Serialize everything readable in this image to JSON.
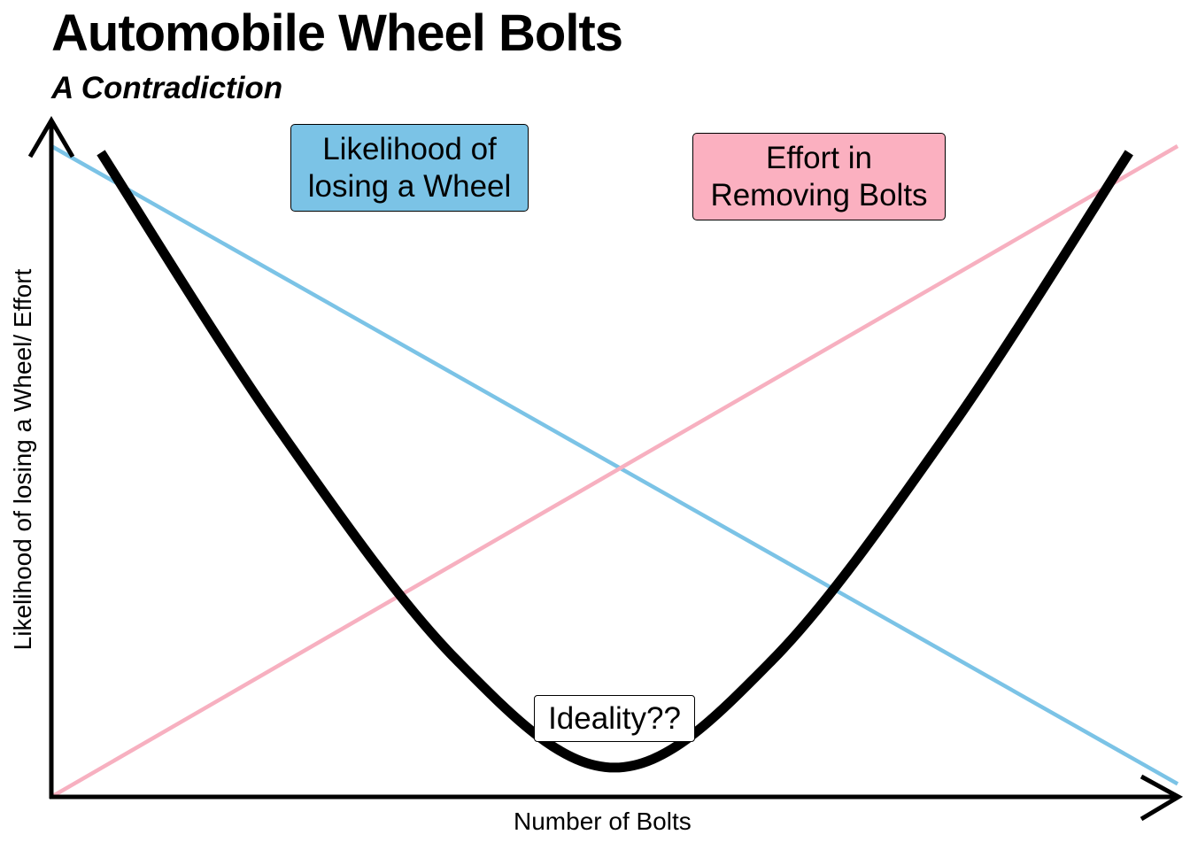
{
  "chart_data": {
    "type": "line",
    "title": "Automobile Wheel Bolts",
    "subtitle": "A Contradiction",
    "xlabel": "Number of Bolts",
    "ylabel": "Likelihood of losing a Wheel/ Effort",
    "xlim": [
      0,
      100
    ],
    "ylim": [
      0,
      100
    ],
    "grid": false,
    "axis_ticks": false,
    "series": [
      {
        "name": "Likelihood of losing a Wheel",
        "color": "#7bc3e6",
        "x": [
          0,
          100
        ],
        "y": [
          100,
          2
        ]
      },
      {
        "name": "Effort in Removing Bolts",
        "color": "#f7b0c0",
        "x": [
          0,
          100
        ],
        "y": [
          0,
          100
        ]
      },
      {
        "name": "",
        "color": "#000000",
        "x": [
          4.4,
          20,
          36,
          50,
          64,
          80,
          95.7
        ],
        "y": [
          99,
          57,
          21,
          4.5,
          21,
          57,
          99
        ]
      }
    ],
    "annotations": [
      {
        "text": "Likelihood of losing a Wheel",
        "series": "Likelihood of losing a Wheel",
        "style": "box",
        "fill": "#7bc3e6"
      },
      {
        "text": "Effort in Removing Bolts",
        "series": "Effort in Removing Bolts",
        "style": "box",
        "fill": "#fbb0c0"
      },
      {
        "text": "Ideality??",
        "style": "box",
        "fill": "#ffffff",
        "at": "curve minimum"
      }
    ]
  }
}
